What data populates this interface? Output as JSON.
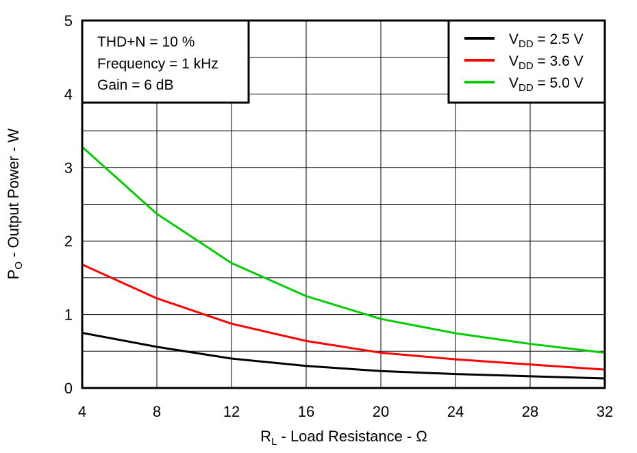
{
  "chart_data": {
    "type": "line",
    "xlabel": {
      "main": "R",
      "sub": "L",
      "rest": " - Load Resistance - Ω"
    },
    "ylabel": {
      "main": "P",
      "sub": "O",
      "rest": " - Output Power - W"
    },
    "xlim": [
      4,
      32
    ],
    "ylim": [
      0,
      5
    ],
    "xticks": [
      4,
      8,
      12,
      16,
      20,
      24,
      28,
      32
    ],
    "yticks": [
      0,
      1,
      2,
      3,
      4,
      5
    ],
    "grid": true,
    "x": [
      4,
      8,
      12,
      16,
      20,
      24,
      28,
      32
    ],
    "series": [
      {
        "name": "VDD = 2.5 V",
        "label_main": "V",
        "label_sub": "DD",
        "label_rest": " = 2.5 V",
        "color": "#000000",
        "values": [
          0.75,
          0.56,
          0.4,
          0.3,
          0.23,
          0.19,
          0.16,
          0.13
        ]
      },
      {
        "name": "VDD = 3.6 V",
        "label_main": "V",
        "label_sub": "DD",
        "label_rest": " = 3.6 V",
        "color": "#ff0000",
        "values": [
          1.68,
          1.22,
          0.875,
          0.64,
          0.48,
          0.39,
          0.32,
          0.25
        ]
      },
      {
        "name": "VDD = 5.0 V",
        "label_main": "V",
        "label_sub": "DD",
        "label_rest": " = 5.0 V",
        "color": "#00cc00",
        "values": [
          3.28,
          2.37,
          1.7,
          1.25,
          0.94,
          0.745,
          0.6,
          0.48
        ]
      }
    ],
    "legend": "top-right",
    "annotations": [
      "THD+N = 10 %",
      "Frequency = 1 kHz",
      "Gain = 6 dB"
    ],
    "annotation_placement": "top-left"
  }
}
